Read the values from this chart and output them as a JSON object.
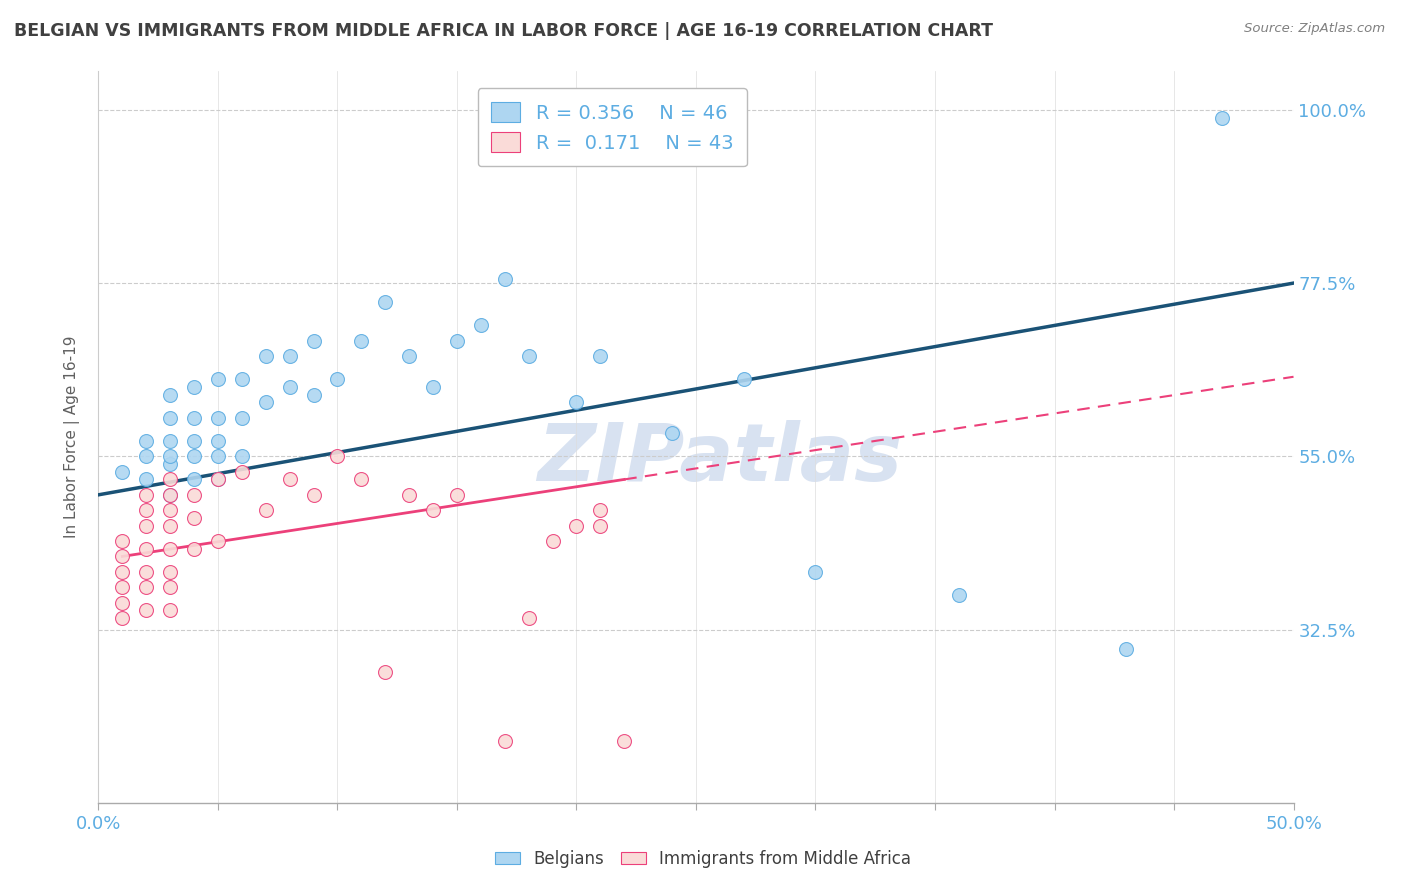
{
  "title": "BELGIAN VS IMMIGRANTS FROM MIDDLE AFRICA IN LABOR FORCE | AGE 16-19 CORRELATION CHART",
  "source": "Source: ZipAtlas.com",
  "ylabel": "In Labor Force | Age 16-19",
  "xlim": [
    0.0,
    0.5
  ],
  "ylim": [
    0.1,
    1.05
  ],
  "yticks": [
    0.325,
    0.55,
    0.775,
    1.0
  ],
  "ytick_labels": [
    "32.5%",
    "55.0%",
    "77.5%",
    "100.0%"
  ],
  "xticks": [
    0.0,
    0.05,
    0.1,
    0.15,
    0.2,
    0.25,
    0.3,
    0.35,
    0.4,
    0.45,
    0.5
  ],
  "xtick_labels": [
    "0.0%",
    "",
    "",
    "",
    "",
    "",
    "",
    "",
    "",
    "",
    "50.0%"
  ],
  "legend_r1": "R = 0.356",
  "legend_n1": "N = 46",
  "legend_r2": "R =  0.171",
  "legend_n2": "N = 43",
  "blue_color": "#AED6F1",
  "pink_color": "#FADBD8",
  "blue_edge": "#5DADE2",
  "pink_edge": "#EC407A",
  "line_blue": "#1A5276",
  "line_pink": "#EC407A",
  "text_blue": "#5DADE2",
  "title_color": "#404040",
  "source_color": "#808080",
  "grid_color": "#CCCCCC",
  "watermark_color": "#BFCFE8",
  "blue_scatter_x": [
    0.01,
    0.02,
    0.02,
    0.02,
    0.03,
    0.03,
    0.03,
    0.03,
    0.03,
    0.03,
    0.04,
    0.04,
    0.04,
    0.04,
    0.04,
    0.05,
    0.05,
    0.05,
    0.05,
    0.05,
    0.06,
    0.06,
    0.06,
    0.07,
    0.07,
    0.08,
    0.08,
    0.09,
    0.09,
    0.1,
    0.11,
    0.12,
    0.13,
    0.14,
    0.15,
    0.16,
    0.17,
    0.18,
    0.2,
    0.21,
    0.24,
    0.27,
    0.3,
    0.36,
    0.43,
    0.47
  ],
  "blue_scatter_y": [
    0.53,
    0.52,
    0.55,
    0.57,
    0.5,
    0.54,
    0.55,
    0.57,
    0.6,
    0.63,
    0.52,
    0.55,
    0.57,
    0.6,
    0.64,
    0.52,
    0.55,
    0.57,
    0.6,
    0.65,
    0.55,
    0.6,
    0.65,
    0.62,
    0.68,
    0.64,
    0.68,
    0.63,
    0.7,
    0.65,
    0.7,
    0.75,
    0.68,
    0.64,
    0.7,
    0.72,
    0.78,
    0.68,
    0.62,
    0.68,
    0.58,
    0.65,
    0.4,
    0.37,
    0.3,
    0.99
  ],
  "pink_scatter_x": [
    0.01,
    0.01,
    0.01,
    0.01,
    0.01,
    0.01,
    0.02,
    0.02,
    0.02,
    0.02,
    0.02,
    0.02,
    0.02,
    0.03,
    0.03,
    0.03,
    0.03,
    0.03,
    0.03,
    0.03,
    0.03,
    0.04,
    0.04,
    0.04,
    0.05,
    0.05,
    0.06,
    0.07,
    0.08,
    0.09,
    0.1,
    0.11,
    0.12,
    0.13,
    0.14,
    0.15,
    0.17,
    0.18,
    0.19,
    0.2,
    0.21,
    0.21,
    0.22
  ],
  "pink_scatter_y": [
    0.34,
    0.36,
    0.38,
    0.4,
    0.42,
    0.44,
    0.35,
    0.38,
    0.4,
    0.43,
    0.46,
    0.48,
    0.5,
    0.35,
    0.38,
    0.4,
    0.43,
    0.46,
    0.48,
    0.5,
    0.52,
    0.43,
    0.47,
    0.5,
    0.44,
    0.52,
    0.53,
    0.48,
    0.52,
    0.5,
    0.55,
    0.52,
    0.27,
    0.5,
    0.48,
    0.5,
    0.18,
    0.34,
    0.44,
    0.46,
    0.46,
    0.48,
    0.18
  ]
}
